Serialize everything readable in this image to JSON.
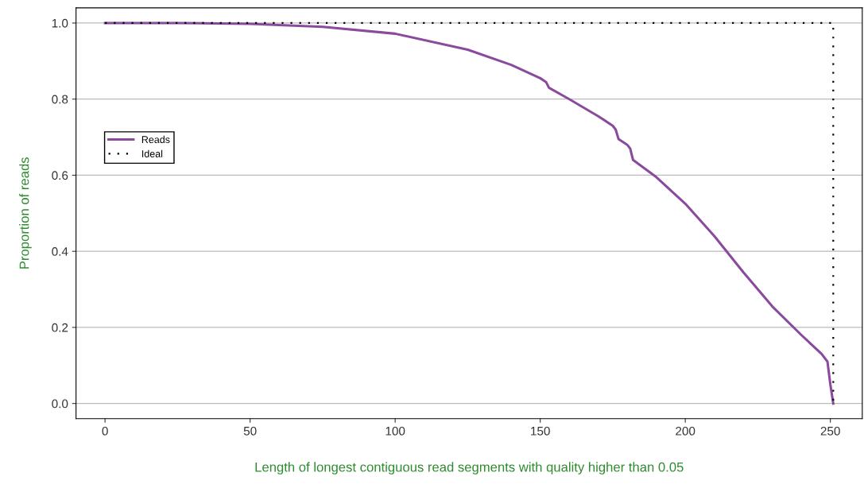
{
  "chart_data": {
    "type": "line",
    "xlabel": "Length of longest contiguous read segments with quality higher than 0.05",
    "ylabel": "Proportion of reads",
    "series": [
      {
        "name": "Reads",
        "color": "#8a4a9e",
        "line_style": "solid",
        "x": [
          0,
          25,
          50,
          75,
          100,
          125,
          140,
          150,
          152,
          153,
          160,
          170,
          175,
          176,
          177,
          180,
          181,
          182,
          190,
          200,
          210,
          220,
          230,
          240,
          247,
          249,
          250,
          251
        ],
        "values": [
          1.0,
          1.0,
          0.998,
          0.99,
          0.972,
          0.93,
          0.89,
          0.855,
          0.845,
          0.83,
          0.8,
          0.755,
          0.73,
          0.72,
          0.695,
          0.68,
          0.67,
          0.64,
          0.595,
          0.525,
          0.44,
          0.345,
          0.255,
          0.18,
          0.13,
          0.11,
          0.05,
          0.0
        ]
      },
      {
        "name": "Ideal",
        "color": "#000000",
        "line_style": "dotted",
        "x": [
          0,
          251,
          251
        ],
        "values": [
          1.0,
          1.0,
          0.0
        ]
      }
    ],
    "xlim": [
      -10,
      261
    ],
    "ylim": [
      -0.04,
      1.04
    ],
    "xticks": [
      0,
      50,
      100,
      150,
      200,
      250
    ],
    "yticks": [
      {
        "value": 0,
        "label": "0.0"
      },
      {
        "value": 0.2,
        "label": "0.2"
      },
      {
        "value": 0.4,
        "label": "0.4"
      },
      {
        "value": 0.6,
        "label": "0.6"
      },
      {
        "value": 0.8,
        "label": "0.8"
      },
      {
        "value": 1.0,
        "label": "1.0"
      }
    ],
    "grid": "y",
    "legend": "left"
  }
}
